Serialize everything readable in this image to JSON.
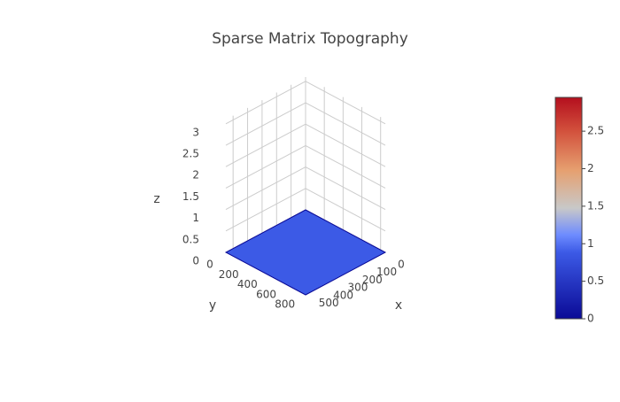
{
  "chart_data": {
    "type": "surface",
    "title": "Sparse Matrix Topography",
    "xlabel": "x",
    "ylabel": "y",
    "zlabel": "z",
    "xlim": [
      0,
      550
    ],
    "xticks": [
      0,
      100,
      200,
      300,
      400,
      500
    ],
    "ylim": [
      0,
      850
    ],
    "yticks": [
      0,
      200,
      400,
      600,
      800
    ],
    "zlim": [
      0,
      3.1
    ],
    "zticks": [
      0,
      0.5,
      1,
      1.5,
      2,
      2.5,
      3
    ],
    "colorbar": {
      "lim": [
        0,
        2.95
      ],
      "ticks": [
        0,
        0.5,
        1,
        1.5,
        2,
        2.5
      ]
    },
    "colorscale": [
      [
        0,
        "#0a0a96"
      ],
      [
        0.3,
        "#3c5ae6"
      ],
      [
        0.38,
        "#6e8cff"
      ],
      [
        0.5,
        "#c8c8c8"
      ],
      [
        0.67,
        "#e6a070"
      ],
      [
        0.85,
        "#d2503c"
      ],
      [
        1,
        "#b40f1e"
      ]
    ],
    "grid": true
  }
}
